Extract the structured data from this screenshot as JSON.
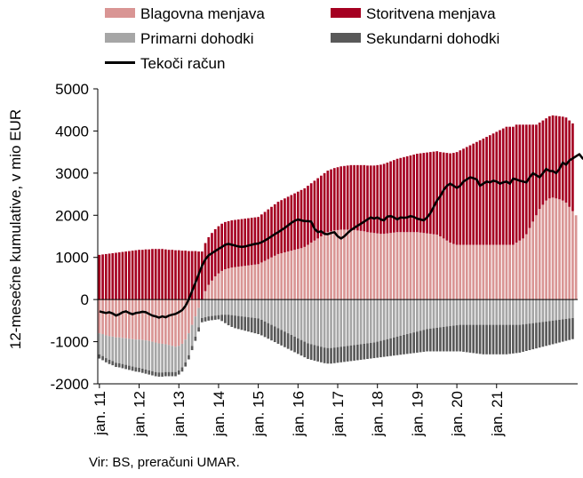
{
  "chart_data": {
    "type": "bar",
    "stacked": true,
    "ylabel": "12-mesečne kumulative, v mio EUR",
    "ylim": [
      -2000,
      5000
    ],
    "yticks": [
      -2000,
      -1000,
      0,
      1000,
      2000,
      3000,
      4000,
      5000
    ],
    "xtick_labels": [
      "jan. 11",
      "jan. 12",
      "jan. 13",
      "jan. 14",
      "jan. 15",
      "jan. 16",
      "jan. 17",
      "jan. 18",
      "jan. 19",
      "jan. 20",
      "jan. 21"
    ],
    "x_start": "2011-01",
    "x_end": "2021-06",
    "grid": false,
    "legend_position": "top",
    "series": [
      {
        "name": "Blagovna menjava",
        "color": "#d99594",
        "values": [
          -800,
          -820,
          -850,
          -870,
          -880,
          -900,
          -900,
          -910,
          -920,
          -930,
          -940,
          -950,
          -950,
          -960,
          -970,
          -980,
          -1000,
          -1020,
          -1040,
          -1050,
          -1060,
          -1080,
          -1100,
          -1120,
          -1100,
          -1050,
          -950,
          -800,
          -600,
          -400,
          -200,
          0,
          200,
          350,
          450,
          550,
          620,
          680,
          720,
          740,
          760,
          770,
          780,
          790,
          800,
          810,
          820,
          830,
          840,
          880,
          920,
          960,
          1000,
          1040,
          1080,
          1100,
          1120,
          1140,
          1160,
          1180,
          1200,
          1220,
          1250,
          1300,
          1350,
          1400,
          1450,
          1500,
          1550,
          1600,
          1620,
          1640,
          1650,
          1660,
          1660,
          1660,
          1660,
          1650,
          1640,
          1630,
          1620,
          1600,
          1590,
          1580,
          1570,
          1560,
          1560,
          1570,
          1580,
          1590,
          1600,
          1600,
          1600,
          1600,
          1600,
          1600,
          1600,
          1590,
          1580,
          1570,
          1560,
          1550,
          1540,
          1500,
          1450,
          1400,
          1350,
          1320,
          1300,
          1300,
          1300,
          1300,
          1300,
          1300,
          1300,
          1300,
          1300,
          1300,
          1300,
          1300,
          1300,
          1300,
          1300,
          1300,
          1300,
          1300,
          1350,
          1400,
          1450,
          1550,
          1700,
          1850,
          2000,
          2150,
          2250,
          2350,
          2400,
          2420,
          2400,
          2380,
          2350,
          2300,
          2200,
          2100,
          2000
        ]
      },
      {
        "name": "Storitvena menjava",
        "color": "#a50021",
        "values": [
          1060,
          1070,
          1080,
          1090,
          1100,
          1110,
          1120,
          1130,
          1140,
          1150,
          1160,
          1170,
          1180,
          1180,
          1190,
          1190,
          1200,
          1200,
          1200,
          1200,
          1190,
          1180,
          1180,
          1170,
          1170,
          1160,
          1160,
          1150,
          1150,
          1150,
          1140,
          1140,
          1140,
          1130,
          1130,
          1120,
          1120,
          1120,
          1120,
          1120,
          1120,
          1120,
          1120,
          1120,
          1120,
          1120,
          1120,
          1120,
          1120,
          1140,
          1160,
          1180,
          1200,
          1220,
          1240,
          1260,
          1280,
          1300,
          1320,
          1340,
          1360,
          1380,
          1390,
          1400,
          1410,
          1420,
          1430,
          1440,
          1450,
          1460,
          1470,
          1480,
          1490,
          1500,
          1510,
          1520,
          1530,
          1540,
          1550,
          1560,
          1570,
          1580,
          1590,
          1600,
          1620,
          1640,
          1660,
          1680,
          1700,
          1720,
          1740,
          1760,
          1780,
          1800,
          1820,
          1840,
          1860,
          1880,
          1900,
          1920,
          1940,
          1960,
          1980,
          2000,
          2040,
          2080,
          2120,
          2160,
          2200,
          2240,
          2280,
          2320,
          2360,
          2400,
          2440,
          2480,
          2520,
          2560,
          2600,
          2640,
          2680,
          2720,
          2760,
          2800,
          2800,
          2800,
          2800,
          2750,
          2700,
          2600,
          2450,
          2300,
          2150,
          2050,
          2000,
          1950,
          1950,
          1950,
          1960,
          1970,
          1990,
          2020,
          2050,
          2080
        ]
      },
      {
        "name": "Primarni dohodki",
        "color": "#a6a6a6",
        "values": [
          -500,
          -520,
          -540,
          -560,
          -580,
          -600,
          -610,
          -620,
          -630,
          -640,
          -650,
          -660,
          -670,
          -680,
          -690,
          -700,
          -700,
          -700,
          -690,
          -680,
          -660,
          -640,
          -620,
          -600,
          -580,
          -560,
          -540,
          -520,
          -500,
          -480,
          -460,
          -440,
          -420,
          -400,
          -390,
          -380,
          -370,
          -360,
          -360,
          -360,
          -370,
          -380,
          -390,
          -400,
          -410,
          -420,
          -430,
          -440,
          -450,
          -480,
          -520,
          -560,
          -600,
          -640,
          -680,
          -720,
          -760,
          -800,
          -840,
          -880,
          -920,
          -960,
          -1000,
          -1040,
          -1060,
          -1080,
          -1100,
          -1120,
          -1140,
          -1150,
          -1150,
          -1140,
          -1130,
          -1120,
          -1110,
          -1100,
          -1090,
          -1080,
          -1070,
          -1060,
          -1050,
          -1040,
          -1030,
          -1020,
          -1000,
          -980,
          -960,
          -940,
          -920,
          -900,
          -880,
          -860,
          -840,
          -820,
          -800,
          -780,
          -760,
          -740,
          -720,
          -700,
          -690,
          -680,
          -670,
          -660,
          -650,
          -640,
          -630,
          -620,
          -610,
          -600,
          -600,
          -600,
          -600,
          -600,
          -600,
          -600,
          -600,
          -600,
          -600,
          -600,
          -600,
          -600,
          -600,
          -600,
          -600,
          -600,
          -600,
          -600,
          -590,
          -580,
          -570,
          -560,
          -550,
          -540,
          -530,
          -520,
          -510,
          -500,
          -490,
          -480,
          -470,
          -460,
          -450,
          -440,
          -430,
          -420
        ]
      },
      {
        "name": "Sekundarni dohodki",
        "color": "#595959",
        "values": [
          -100,
          -100,
          -100,
          -100,
          -100,
          -100,
          -100,
          -100,
          -100,
          -100,
          -100,
          -100,
          -100,
          -100,
          -100,
          -100,
          -100,
          -100,
          -100,
          -100,
          -100,
          -100,
          -100,
          -100,
          -100,
          -100,
          -100,
          -100,
          -100,
          -100,
          -100,
          -100,
          -100,
          -100,
          -100,
          -100,
          -100,
          -150,
          -200,
          -250,
          -280,
          -300,
          -310,
          -320,
          -330,
          -340,
          -350,
          -360,
          -370,
          -370,
          -370,
          -370,
          -370,
          -370,
          -370,
          -370,
          -370,
          -370,
          -370,
          -370,
          -370,
          -370,
          -370,
          -370,
          -370,
          -370,
          -370,
          -370,
          -370,
          -370,
          -370,
          -370,
          -370,
          -370,
          -370,
          -370,
          -370,
          -370,
          -370,
          -370,
          -370,
          -370,
          -370,
          -370,
          -380,
          -390,
          -400,
          -410,
          -420,
          -430,
          -440,
          -450,
          -460,
          -470,
          -480,
          -490,
          -500,
          -510,
          -520,
          -530,
          -540,
          -550,
          -560,
          -570,
          -580,
          -590,
          -600,
          -610,
          -620,
          -630,
          -640,
          -650,
          -660,
          -670,
          -680,
          -690,
          -700,
          -700,
          -700,
          -700,
          -700,
          -700,
          -700,
          -700,
          -690,
          -680,
          -670,
          -660,
          -650,
          -640,
          -630,
          -620,
          -610,
          -600,
          -590,
          -580,
          -570,
          -560,
          -550,
          -540,
          -530,
          -520,
          -510,
          -500
        ]
      }
    ],
    "line": {
      "name": "Tekoči račun",
      "color": "#000000",
      "values": [
        -280,
        -300,
        -320,
        -300,
        -330,
        -380,
        -350,
        -300,
        -280,
        -320,
        -350,
        -320,
        -310,
        -290,
        -300,
        -340,
        -380,
        -400,
        -430,
        -400,
        -420,
        -380,
        -360,
        -340,
        -300,
        -250,
        -150,
        0,
        200,
        400,
        600,
        800,
        950,
        1050,
        1100,
        1150,
        1200,
        1250,
        1300,
        1320,
        1300,
        1280,
        1260,
        1250,
        1260,
        1280,
        1300,
        1320,
        1330,
        1360,
        1400,
        1450,
        1500,
        1550,
        1600,
        1650,
        1700,
        1760,
        1820,
        1870,
        1900,
        1880,
        1860,
        1860,
        1850,
        1680,
        1600,
        1620,
        1560,
        1550,
        1580,
        1600,
        1500,
        1450,
        1500,
        1580,
        1650,
        1700,
        1750,
        1800,
        1850,
        1900,
        1950,
        1920,
        1950,
        1900,
        1880,
        1970,
        1980,
        1950,
        1900,
        1950,
        1940,
        1950,
        1980,
        1960,
        1920,
        1900,
        1880,
        1950,
        2050,
        2200,
        2350,
        2450,
        2600,
        2700,
        2750,
        2700,
        2650,
        2700,
        2800,
        2850,
        2900,
        2880,
        2850,
        2700,
        2750,
        2800,
        2780,
        2820,
        2800,
        2750,
        2780,
        2800,
        2750,
        2870,
        2850,
        2820,
        2800,
        2780,
        2900,
        3000,
        2950,
        2900,
        3000,
        3100,
        3050,
        3050,
        3000,
        3100,
        3250,
        3200,
        3300,
        3350,
        3400,
        3450,
        3350,
        3300,
        3250,
        3300,
        3250,
        3150
      ]
    }
  },
  "legend": {
    "items": [
      {
        "label": "Blagovna menjava",
        "color": "#d99594"
      },
      {
        "label": "Storitvena menjava",
        "color": "#a50021"
      },
      {
        "label": "Primarni dohodki",
        "color": "#a6a6a6"
      },
      {
        "label": "Sekundarni dohodki",
        "color": "#595959"
      },
      {
        "label": "Tekoči račun",
        "color": "#000000"
      }
    ]
  },
  "source": "Vir: BS, preračuni UMAR."
}
